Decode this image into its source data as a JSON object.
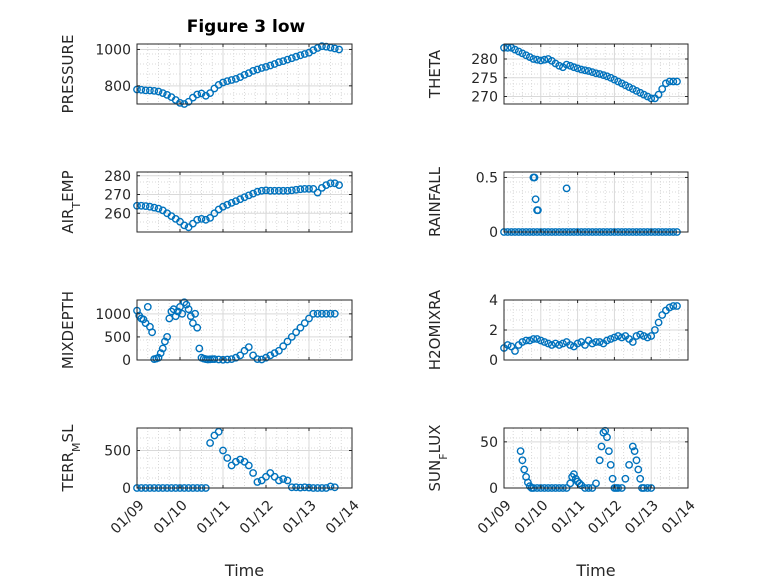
{
  "figure": {
    "title": "Figure 3 low"
  },
  "colors": {
    "marker": "#0072BD",
    "axes": "#262626",
    "grid": "#d9d9d9"
  },
  "chart_data": [
    {
      "type": "scatter",
      "ylabel": "PRESSURE",
      "ylim": [
        700,
        1030
      ],
      "yticks": [
        800,
        1000
      ],
      "xlim": [
        0,
        5
      ],
      "grid": true,
      "x": [
        0.0,
        0.1,
        0.2,
        0.3,
        0.4,
        0.5,
        0.6,
        0.7,
        0.8,
        0.9,
        1.0,
        1.1,
        1.2,
        1.3,
        1.4,
        1.5,
        1.6,
        1.7,
        1.8,
        1.9,
        2.0,
        2.1,
        2.2,
        2.3,
        2.4,
        2.5,
        2.6,
        2.7,
        2.8,
        2.9,
        3.0,
        3.1,
        3.2,
        3.3,
        3.4,
        3.5,
        3.6,
        3.7,
        3.8,
        3.9,
        4.0,
        4.1,
        4.2,
        4.3,
        4.4,
        4.5,
        4.6,
        4.7
      ],
      "values": [
        780,
        778,
        775,
        774,
        772,
        769,
        760,
        750,
        738,
        722,
        706,
        700,
        712,
        735,
        752,
        758,
        745,
        760,
        785,
        805,
        818,
        826,
        832,
        838,
        848,
        860,
        870,
        882,
        890,
        898,
        904,
        912,
        920,
        930,
        936,
        944,
        952,
        960,
        968,
        975,
        982,
        996,
        1008,
        1018,
        1015,
        1010,
        1005,
        1000
      ]
    },
    {
      "type": "scatter",
      "ylabel": "THETA",
      "ylim": [
        268,
        284
      ],
      "yticks": [
        270,
        275,
        280
      ],
      "xlim": [
        0,
        5
      ],
      "grid": true,
      "x": [
        0.0,
        0.1,
        0.2,
        0.3,
        0.4,
        0.5,
        0.6,
        0.7,
        0.8,
        0.9,
        1.0,
        1.1,
        1.2,
        1.3,
        1.4,
        1.5,
        1.6,
        1.7,
        1.8,
        1.9,
        2.0,
        2.1,
        2.2,
        2.3,
        2.4,
        2.5,
        2.6,
        2.7,
        2.8,
        2.9,
        3.0,
        3.1,
        3.2,
        3.3,
        3.4,
        3.5,
        3.6,
        3.7,
        3.8,
        3.9,
        4.0,
        4.1,
        4.2,
        4.3,
        4.4,
        4.5,
        4.6,
        4.7
      ],
      "values": [
        283.0,
        283.0,
        283.0,
        282.5,
        282.0,
        281.5,
        281.0,
        280.5,
        280.0,
        279.8,
        279.6,
        279.8,
        280.0,
        279.5,
        278.8,
        278.2,
        277.8,
        278.5,
        278.2,
        277.8,
        277.5,
        277.2,
        277.0,
        276.8,
        276.5,
        276.2,
        276.0,
        275.7,
        275.4,
        275.0,
        274.5,
        274.0,
        273.5,
        273.0,
        272.5,
        272.0,
        271.5,
        271.0,
        270.5,
        270.0,
        269.5,
        269.5,
        270.5,
        272.0,
        273.5,
        274.0,
        274.0,
        274.0
      ]
    },
    {
      "type": "scatter",
      "ylabel": "AIR_TEMP",
      "ylim": [
        250,
        282
      ],
      "yticks": [
        260,
        270,
        280
      ],
      "xlim": [
        0,
        5
      ],
      "grid": true,
      "x": [
        0.0,
        0.1,
        0.2,
        0.3,
        0.4,
        0.5,
        0.6,
        0.7,
        0.8,
        0.9,
        1.0,
        1.1,
        1.2,
        1.3,
        1.4,
        1.5,
        1.6,
        1.7,
        1.8,
        1.9,
        2.0,
        2.1,
        2.2,
        2.3,
        2.4,
        2.5,
        2.6,
        2.7,
        2.8,
        2.9,
        3.0,
        3.1,
        3.2,
        3.3,
        3.4,
        3.5,
        3.6,
        3.7,
        3.8,
        3.9,
        4.0,
        4.1,
        4.2,
        4.3,
        4.4,
        4.5,
        4.6,
        4.7
      ],
      "values": [
        264.0,
        264.0,
        263.8,
        263.5,
        263.0,
        262.5,
        261.5,
        260.0,
        258.5,
        257.0,
        255.5,
        253.5,
        252.5,
        254.5,
        256.5,
        257.0,
        256.5,
        257.5,
        260.0,
        262.0,
        263.5,
        264.5,
        265.5,
        266.5,
        267.5,
        268.5,
        269.5,
        270.5,
        271.5,
        272.0,
        272.2,
        272.0,
        272.0,
        272.0,
        272.0,
        272.0,
        272.2,
        272.5,
        272.8,
        273.0,
        273.0,
        273.0,
        271.0,
        273.5,
        275.0,
        276.0,
        276.0,
        275.0
      ]
    },
    {
      "type": "scatter",
      "ylabel": "RAINFALL",
      "ylim": [
        0,
        0.55
      ],
      "yticks": [
        0,
        0.5
      ],
      "xlim": [
        0,
        5
      ],
      "grid": true,
      "x": [
        0.0,
        0.1,
        0.2,
        0.3,
        0.4,
        0.5,
        0.6,
        0.7,
        0.8,
        0.9,
        1.0,
        1.1,
        1.2,
        1.3,
        1.4,
        1.5,
        1.6,
        1.7,
        1.8,
        1.9,
        2.0,
        2.1,
        2.2,
        2.3,
        2.4,
        2.5,
        2.6,
        2.7,
        2.8,
        2.9,
        3.0,
        3.1,
        3.2,
        3.3,
        3.4,
        3.5,
        3.6,
        3.7,
        3.8,
        3.9,
        4.0,
        4.1,
        4.2,
        4.3,
        4.4,
        4.5,
        4.6,
        4.7,
        0.8,
        0.83,
        0.86,
        0.9,
        0.92,
        1.7
      ],
      "values": [
        0,
        0,
        0,
        0,
        0,
        0,
        0,
        0,
        0,
        0,
        0,
        0,
        0,
        0,
        0,
        0,
        0,
        0,
        0,
        0,
        0,
        0,
        0,
        0,
        0,
        0,
        0,
        0,
        0,
        0,
        0,
        0,
        0,
        0,
        0,
        0,
        0,
        0,
        0,
        0,
        0,
        0,
        0,
        0,
        0,
        0,
        0,
        0,
        0.5,
        0.5,
        0.3,
        0.2,
        0.2,
        0.4
      ]
    },
    {
      "type": "scatter",
      "ylabel": "MIXDEPTH",
      "ylim": [
        0,
        1300
      ],
      "yticks": [
        0,
        500,
        1000
      ],
      "xlim": [
        0,
        5
      ],
      "grid": true,
      "x": [
        0.0,
        0.05,
        0.1,
        0.15,
        0.2,
        0.25,
        0.3,
        0.35,
        0.4,
        0.45,
        0.5,
        0.55,
        0.6,
        0.65,
        0.7,
        0.75,
        0.8,
        0.85,
        0.9,
        0.95,
        1.0,
        1.05,
        1.1,
        1.15,
        1.2,
        1.25,
        1.3,
        1.35,
        1.4,
        1.45,
        1.5,
        1.55,
        1.6,
        1.65,
        1.7,
        1.75,
        1.8,
        1.9,
        2.0,
        2.1,
        2.2,
        2.3,
        2.4,
        2.5,
        2.6,
        2.7,
        2.8,
        2.9,
        3.0,
        3.1,
        3.2,
        3.3,
        3.4,
        3.5,
        3.6,
        3.7,
        3.8,
        3.9,
        4.0,
        4.1,
        4.2,
        4.3,
        4.4,
        4.5,
        4.6
      ],
      "values": [
        1070,
        960,
        900,
        880,
        800,
        1150,
        720,
        600,
        20,
        30,
        50,
        150,
        250,
        400,
        500,
        900,
        1050,
        1100,
        950,
        1050,
        1150,
        1000,
        1250,
        1200,
        1100,
        950,
        800,
        1000,
        700,
        250,
        50,
        30,
        20,
        10,
        15,
        20,
        20,
        10,
        5,
        10,
        20,
        50,
        100,
        200,
        280,
        100,
        20,
        10,
        50,
        100,
        150,
        200,
        300,
        400,
        500,
        600,
        700,
        800,
        900,
        1000,
        1000,
        1000,
        1000,
        1000,
        1000
      ]
    },
    {
      "type": "scatter",
      "ylabel": "H2OMIXRA",
      "ylim": [
        0,
        4
      ],
      "yticks": [
        0,
        2,
        4
      ],
      "xlim": [
        0,
        5
      ],
      "grid": true,
      "x": [
        0.0,
        0.1,
        0.2,
        0.3,
        0.4,
        0.5,
        0.6,
        0.7,
        0.8,
        0.9,
        1.0,
        1.1,
        1.2,
        1.3,
        1.4,
        1.5,
        1.6,
        1.7,
        1.8,
        1.9,
        2.0,
        2.1,
        2.2,
        2.3,
        2.4,
        2.5,
        2.6,
        2.7,
        2.8,
        2.9,
        3.0,
        3.1,
        3.2,
        3.3,
        3.4,
        3.5,
        3.6,
        3.7,
        3.8,
        3.9,
        4.0,
        4.1,
        4.2,
        4.3,
        4.4,
        4.5,
        4.6,
        4.7
      ],
      "values": [
        0.8,
        1.0,
        0.9,
        0.6,
        1.0,
        1.2,
        1.3,
        1.3,
        1.4,
        1.4,
        1.3,
        1.2,
        1.1,
        1.0,
        1.1,
        1.0,
        1.1,
        1.2,
        1.0,
        0.9,
        1.1,
        1.2,
        1.0,
        1.3,
        1.1,
        1.2,
        1.2,
        1.1,
        1.3,
        1.4,
        1.5,
        1.6,
        1.5,
        1.6,
        1.4,
        1.2,
        1.6,
        1.7,
        1.6,
        1.5,
        1.6,
        2.0,
        2.5,
        3.0,
        3.3,
        3.5,
        3.6,
        3.6
      ]
    },
    {
      "type": "scatter",
      "ylabel": "TERR_MSL",
      "ylim": [
        0,
        800
      ],
      "yticks": [
        0,
        500
      ],
      "xlim": [
        0,
        5
      ],
      "xticklabels": [
        "01/09",
        "01/10",
        "01/11",
        "01/12",
        "01/13",
        "01/14"
      ],
      "xlabel": "Time",
      "grid": true,
      "x": [
        0.0,
        0.1,
        0.2,
        0.3,
        0.4,
        0.5,
        0.6,
        0.7,
        0.8,
        0.9,
        1.0,
        1.1,
        1.2,
        1.3,
        1.4,
        1.5,
        1.6,
        1.7,
        1.8,
        1.9,
        2.0,
        2.1,
        2.2,
        2.3,
        2.4,
        2.5,
        2.6,
        2.7,
        2.8,
        2.9,
        3.0,
        3.1,
        3.2,
        3.3,
        3.4,
        3.5,
        3.6,
        3.7,
        3.8,
        3.9,
        4.0,
        4.1,
        4.2,
        4.3,
        4.4,
        4.5,
        4.6
      ],
      "values": [
        0,
        0,
        0,
        0,
        0,
        0,
        0,
        0,
        0,
        0,
        0,
        0,
        0,
        0,
        0,
        0,
        0,
        600,
        700,
        750,
        500,
        400,
        300,
        350,
        380,
        350,
        300,
        200,
        80,
        100,
        150,
        200,
        150,
        100,
        120,
        100,
        10,
        10,
        5,
        10,
        5,
        0,
        0,
        0,
        0,
        20,
        10
      ]
    },
    {
      "type": "scatter",
      "ylabel": "SUN_FLUX",
      "ylim": [
        0,
        65
      ],
      "yticks": [
        0,
        50
      ],
      "xlim": [
        0,
        5
      ],
      "xticklabels": [
        "01/09",
        "01/10",
        "01/11",
        "01/12",
        "01/13",
        "01/14"
      ],
      "xlabel": "Time",
      "grid": true,
      "x": [
        0.45,
        0.5,
        0.55,
        0.6,
        0.65,
        0.7,
        0.75,
        0.8,
        0.9,
        1.0,
        1.1,
        1.2,
        1.3,
        1.4,
        1.5,
        1.6,
        1.7,
        1.8,
        1.85,
        1.9,
        1.95,
        2.0,
        2.05,
        2.1,
        2.2,
        2.3,
        2.4,
        2.5,
        2.6,
        2.65,
        2.7,
        2.75,
        2.8,
        2.85,
        2.9,
        2.95,
        3.0,
        3.05,
        3.1,
        3.2,
        3.3,
        3.4,
        3.5,
        3.55,
        3.6,
        3.65,
        3.7,
        3.75,
        3.8,
        3.9,
        4.0
      ],
      "values": [
        40,
        30,
        20,
        12,
        6,
        2,
        0,
        0,
        0,
        0,
        0,
        0,
        0,
        0,
        0,
        0,
        0,
        5,
        12,
        15,
        10,
        7,
        5,
        3,
        0,
        0,
        0,
        5,
        30,
        45,
        60,
        62,
        55,
        40,
        25,
        10,
        0,
        0,
        0,
        0,
        10,
        25,
        45,
        40,
        30,
        20,
        10,
        0,
        0,
        0,
        0
      ]
    }
  ]
}
